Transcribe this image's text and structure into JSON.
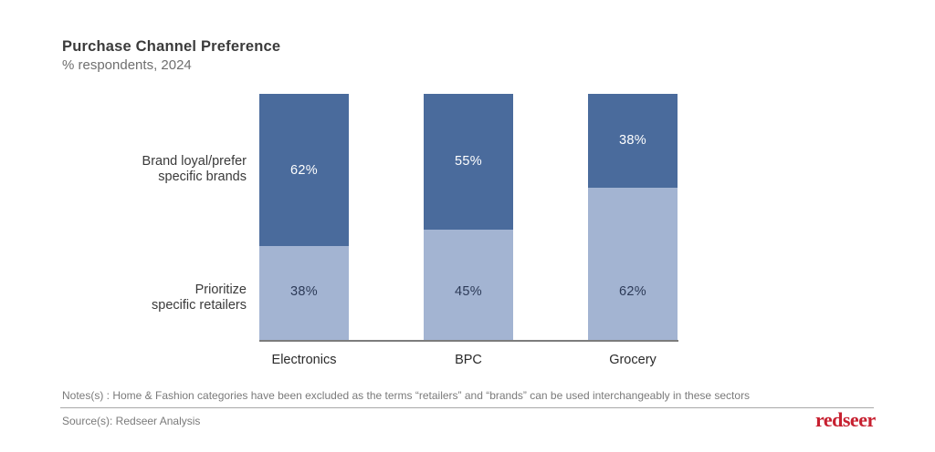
{
  "header": {
    "title": "Purchase Channel Preference",
    "subtitle": "% respondents, 2024"
  },
  "chart_data": {
    "type": "bar",
    "stacked": true,
    "unit": "%",
    "title": "Purchase Channel Preference",
    "subtitle": "% respondents, 2024",
    "categories": [
      "Electronics",
      "BPC",
      "Grocery"
    ],
    "series": [
      {
        "name": "Prioritize specific retailers",
        "values": [
          38,
          45,
          62
        ],
        "color": "#a3b4d2",
        "label_color": "#2c3a57",
        "position": "bottom"
      },
      {
        "name": "Brand loyal/prefer specific brands",
        "values": [
          62,
          55,
          38
        ],
        "color": "#4a6b9c",
        "label_color": "#ffffff",
        "position": "top"
      }
    ],
    "ylim": [
      0,
      100
    ],
    "grid": false,
    "legend_position": "left-row-labels",
    "axis_line_color": "#7c7c7c"
  },
  "row_labels": {
    "top_line1": "Brand loyal/prefer",
    "top_line2": "specific brands",
    "bottom_line1": "Prioritize",
    "bottom_line2": "specific retailers"
  },
  "footer": {
    "notes": "Notes(s) : Home & Fashion categories have been excluded as the terms “retailers” and “brands” can be used interchangeably in these sectors",
    "source": "Source(s): Redseer Analysis",
    "logo_text": "redseer",
    "logo_color": "#c72030"
  }
}
